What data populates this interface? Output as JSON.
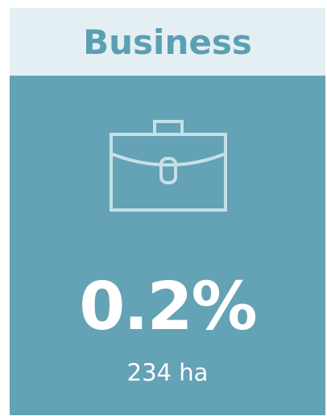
{
  "card": {
    "title": "Business",
    "value": "0.2%",
    "area": "234 ha"
  }
}
